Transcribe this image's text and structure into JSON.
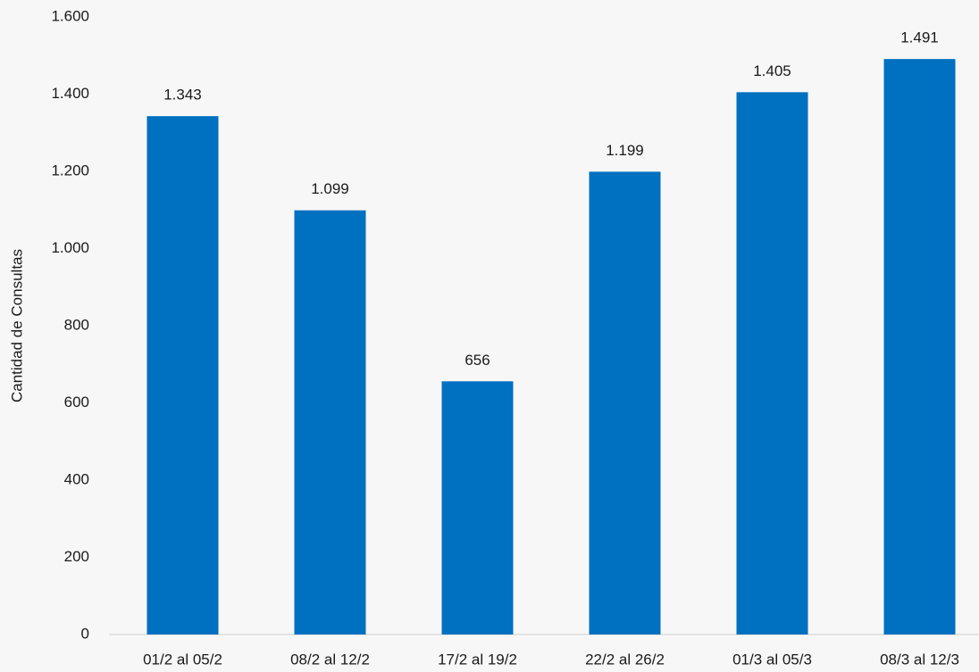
{
  "chart_data": {
    "type": "bar",
    "y_label": "Cantidad de Consultas",
    "categories": [
      "01/2 al 05/2",
      "08/2 al 12/2",
      "17/2 al 19/2",
      "22/2 al 26/2",
      "01/3 al 05/3",
      "08/3 al 12/3"
    ],
    "values": [
      1343,
      1099,
      656,
      1199,
      1405,
      1491
    ],
    "value_labels": [
      "1.343",
      "1.099",
      "656",
      "1.199",
      "1.405",
      "1.491"
    ],
    "color": "#0070c0",
    "ylim": [
      0,
      1600
    ],
    "yticks": [
      0,
      200,
      400,
      600,
      800,
      {
        "value": 1000,
        "label": "1.000"
      },
      {
        "value": 1200,
        "label": "1.200"
      },
      {
        "value": 1400,
        "label": "1.400"
      },
      {
        "value": 1600,
        "label": "1.600"
      }
    ],
    "grid": false
  }
}
